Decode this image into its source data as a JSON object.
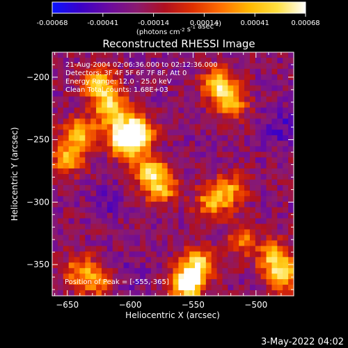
{
  "chart_data": {
    "type": "heatmap",
    "title": "Reconstructed RHESSI Image",
    "xlabel": "Heliocentric X (arcsec)",
    "ylabel": "Heliocentric Y (arcsec)",
    "xlim": [
      -662,
      -470
    ],
    "ylim": [
      -375,
      -180
    ],
    "x_ticks": [
      -650,
      -600,
      -550,
      -500
    ],
    "y_ticks": [
      -200,
      -250,
      -300,
      -350
    ],
    "colorbar": {
      "min": -0.00068,
      "max": 0.00068,
      "ticks": [
        "-0.00068",
        "-0.00041",
        "-0.00014",
        "0.00014",
        "0.00041",
        "0.00068"
      ],
      "units": "(photons cm⁻² s⁻¹ asec⁻²)",
      "colors": [
        "#0a14ff",
        "#3a00c8",
        "#6a0aa0",
        "#8a1a70",
        "#b01020",
        "#e03000",
        "#ff7000",
        "#ffb800",
        "#ffe040",
        "#ffffff"
      ]
    },
    "annotations": [
      "21-Aug-2004 02:06:36.000 to 02:12:36.000",
      "Detectors: 3F 4F 5F 6F 7F 8F, Att 0",
      "Energy Range: 12.0 - 25.0 keV",
      "Clean    Total counts: 1.68E+03",
      "Position of Peak = [-555,-365]"
    ],
    "peak": {
      "x": -555,
      "y": -365
    },
    "grid": false,
    "bright_features": [
      {
        "x": -605,
        "y": -250,
        "level": 0.98
      },
      {
        "x": -595,
        "y": -245,
        "level": 0.95
      },
      {
        "x": -615,
        "y": -225,
        "level": 0.85
      },
      {
        "x": -625,
        "y": -205,
        "level": 0.8
      },
      {
        "x": -640,
        "y": -245,
        "level": 0.75
      },
      {
        "x": -650,
        "y": -265,
        "level": 0.7
      },
      {
        "x": -585,
        "y": -275,
        "level": 0.8
      },
      {
        "x": -575,
        "y": -290,
        "level": 0.7
      },
      {
        "x": -555,
        "y": -365,
        "level": 1.0
      },
      {
        "x": -545,
        "y": -350,
        "level": 0.8
      },
      {
        "x": -535,
        "y": -300,
        "level": 0.7
      },
      {
        "x": -520,
        "y": -290,
        "level": 0.65
      },
      {
        "x": -530,
        "y": -205,
        "level": 0.75
      },
      {
        "x": -520,
        "y": -220,
        "level": 0.7
      },
      {
        "x": -485,
        "y": -345,
        "level": 0.75
      },
      {
        "x": -478,
        "y": -360,
        "level": 0.7
      },
      {
        "x": -510,
        "y": -330,
        "level": 0.6
      },
      {
        "x": -640,
        "y": -355,
        "level": 0.65
      },
      {
        "x": -625,
        "y": -365,
        "level": 0.6
      }
    ],
    "dark_features": [
      {
        "x": -480,
        "y": -240,
        "level": 0.2
      },
      {
        "x": -620,
        "y": -300,
        "level": 0.25
      },
      {
        "x": -600,
        "y": -360,
        "level": 0.25
      }
    ]
  },
  "footer": {
    "date": "3-May-2022 04:02"
  }
}
